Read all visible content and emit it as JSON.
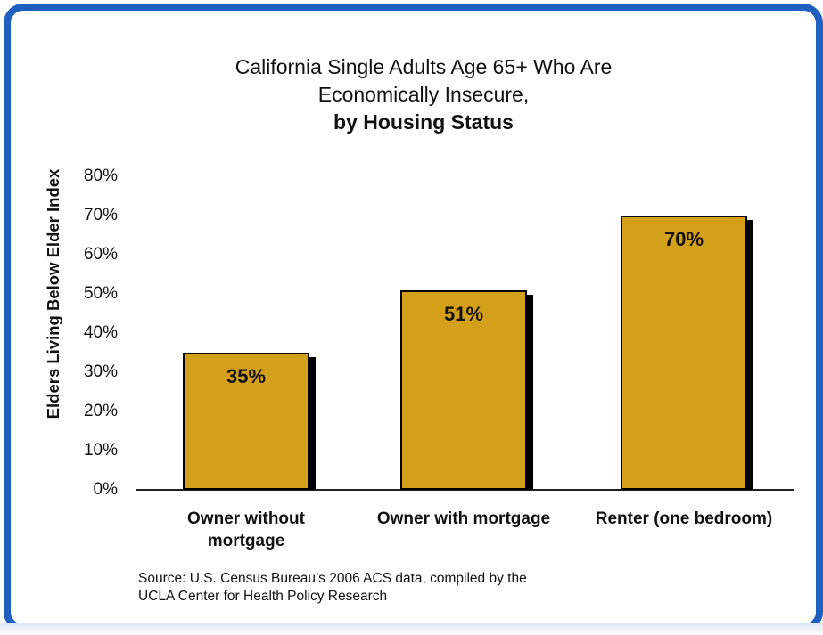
{
  "chart_data": {
    "type": "bar",
    "title_lines": [
      "California Single Adults Age 65+ Who Are",
      "Economically Insecure,"
    ],
    "title_bold": "by Housing Status",
    "ylabel": "Elders Living Below  Elder Index",
    "xlabel": "",
    "ylim": [
      0,
      80
    ],
    "yticks": [
      "0%",
      "10%",
      "20%",
      "30%",
      "40%",
      "50%",
      "60%",
      "70%",
      "80%"
    ],
    "categories": [
      "Owner without mortgage",
      "Owner with mortgage",
      "Renter (one bedroom)"
    ],
    "category_label_lines": [
      [
        "Owner without",
        "mortgage"
      ],
      [
        "Owner with mortgage"
      ],
      [
        "Renter (one bedroom)"
      ]
    ],
    "values": [
      35,
      51,
      70
    ],
    "data_labels": [
      "35%",
      "51%",
      "70%"
    ],
    "bar_color": "#d4a01a",
    "grid": false,
    "legend": "none"
  },
  "source": {
    "line1": "Source:  U.S. Census Bureau’s 2006 ACS data, compiled by the",
    "line2": "UCLA Center for Health Policy Research"
  },
  "colors": {
    "frame": "#1f5fbf"
  }
}
